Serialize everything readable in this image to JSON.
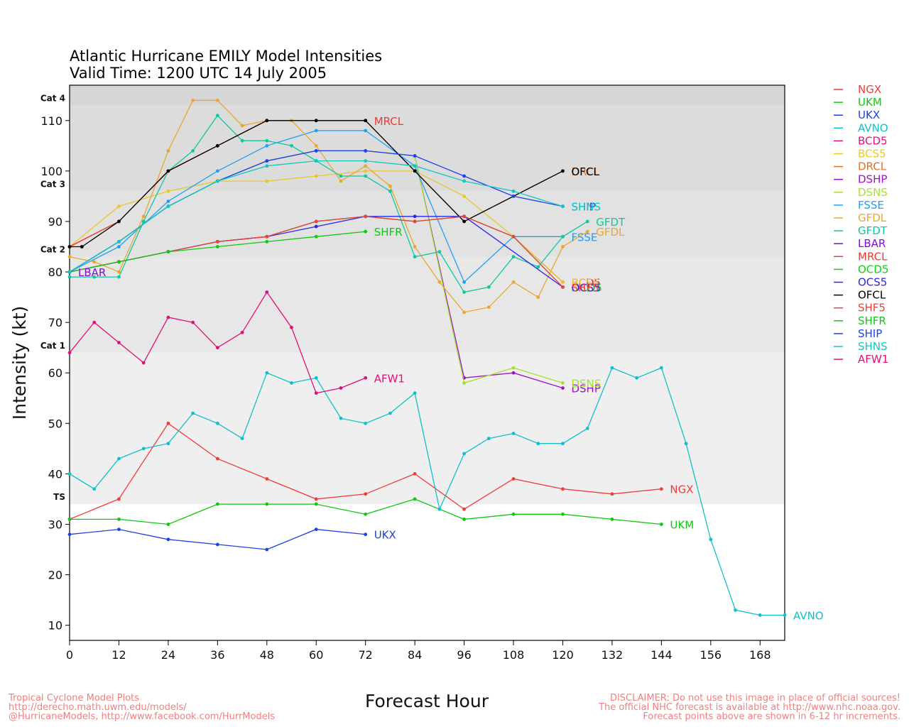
{
  "chart_data": {
    "type": "line",
    "title": "Atlantic Hurricane EMILY Model Intensities",
    "subtitle": "Valid Time: 1200 UTC 14 July 2005",
    "xlabel": "Forecast Hour",
    "ylabel": "Intensity (kt)",
    "xlim": [
      0,
      174
    ],
    "ylim": [
      7,
      117
    ],
    "xticks": [
      0,
      12,
      24,
      36,
      48,
      60,
      72,
      84,
      96,
      108,
      120,
      132,
      144,
      156,
      168
    ],
    "yticks": [
      10,
      20,
      30,
      40,
      50,
      60,
      70,
      80,
      90,
      100,
      110
    ],
    "legend_position": "right",
    "categories_bands": [
      {
        "label": "TS",
        "min": 34,
        "max": 64,
        "color": "#efefef"
      },
      {
        "label": "Cat 1",
        "min": 64,
        "max": 83,
        "color": "#e7e7e7"
      },
      {
        "label": "Cat 2",
        "min": 83,
        "max": 96,
        "color": "#e2e2e2"
      },
      {
        "label": "Cat 3",
        "min": 96,
        "max": 113,
        "color": "#dcdcdc"
      },
      {
        "label": "Cat 4",
        "min": 113,
        "max": 117,
        "color": "#d6d6d6"
      }
    ],
    "series": [
      {
        "name": "NGX",
        "color": "#f03c3c",
        "label_at": "end",
        "points": [
          [
            0,
            31
          ],
          [
            12,
            35
          ],
          [
            24,
            50
          ],
          [
            36,
            43
          ],
          [
            48,
            39
          ],
          [
            60,
            35
          ],
          [
            72,
            36
          ],
          [
            84,
            40
          ],
          [
            96,
            33
          ],
          [
            108,
            39
          ],
          [
            120,
            37
          ],
          [
            132,
            36
          ],
          [
            144,
            37
          ]
        ]
      },
      {
        "name": "UKM",
        "color": "#10c810",
        "label_at": "end",
        "points": [
          [
            0,
            31
          ],
          [
            12,
            31
          ],
          [
            24,
            30
          ],
          [
            36,
            34
          ],
          [
            48,
            34
          ],
          [
            60,
            34
          ],
          [
            72,
            32
          ],
          [
            84,
            35
          ],
          [
            96,
            31
          ],
          [
            108,
            32
          ],
          [
            120,
            32
          ],
          [
            132,
            31
          ],
          [
            144,
            30
          ]
        ]
      },
      {
        "name": "UKX",
        "color": "#2040e0",
        "label_at": "end",
        "points": [
          [
            0,
            28
          ],
          [
            12,
            29
          ],
          [
            24,
            27
          ],
          [
            36,
            26
          ],
          [
            48,
            25
          ],
          [
            60,
            29
          ],
          [
            72,
            28
          ]
        ]
      },
      {
        "name": "AVNO",
        "color": "#10c0c8",
        "label_at": "end",
        "points": [
          [
            0,
            40
          ],
          [
            6,
            37
          ],
          [
            12,
            43
          ],
          [
            18,
            45
          ],
          [
            24,
            46
          ],
          [
            30,
            52
          ],
          [
            36,
            50
          ],
          [
            42,
            47
          ],
          [
            48,
            60
          ],
          [
            54,
            58
          ],
          [
            60,
            59
          ],
          [
            66,
            51
          ],
          [
            72,
            50
          ],
          [
            78,
            52
          ],
          [
            84,
            56
          ],
          [
            90,
            33
          ],
          [
            96,
            44
          ],
          [
            102,
            47
          ],
          [
            108,
            48
          ],
          [
            114,
            46
          ],
          [
            120,
            46
          ],
          [
            126,
            49
          ],
          [
            132,
            61
          ],
          [
            138,
            59
          ],
          [
            144,
            61
          ],
          [
            150,
            46
          ],
          [
            156,
            27
          ],
          [
            162,
            13
          ],
          [
            168,
            12
          ],
          [
            174,
            12
          ]
        ]
      },
      {
        "name": "BCD5",
        "color": "#e01080",
        "label_at": "end",
        "points": [
          [
            0,
            80
          ],
          [
            12,
            82
          ],
          [
            24,
            84
          ],
          [
            36,
            86
          ],
          [
            48,
            87
          ],
          [
            60,
            90
          ],
          [
            72,
            91
          ],
          [
            84,
            90
          ],
          [
            96,
            91
          ],
          [
            108,
            87
          ],
          [
            120,
            78
          ]
        ]
      },
      {
        "name": "BCS5",
        "color": "#e8c828",
        "label_at": "end",
        "points": [
          [
            0,
            85
          ],
          [
            12,
            93
          ],
          [
            24,
            96
          ],
          [
            36,
            98
          ],
          [
            48,
            98
          ],
          [
            60,
            99
          ],
          [
            72,
            100
          ],
          [
            84,
            100
          ],
          [
            96,
            95
          ],
          [
            108,
            87
          ],
          [
            120,
            78
          ]
        ]
      },
      {
        "name": "DRCL",
        "color": "#e07020",
        "label_at": "end",
        "points": [
          [
            0,
            85
          ],
          [
            12,
            90
          ],
          [
            24,
            100
          ],
          [
            36,
            105
          ],
          [
            48,
            110
          ],
          [
            60,
            110
          ],
          [
            72,
            110
          ],
          [
            84,
            100
          ],
          [
            96,
            90
          ],
          [
            108,
            95
          ],
          [
            120,
            100
          ]
        ]
      },
      {
        "name": "DSHP",
        "color": "#a010d0",
        "label_at": "end",
        "points": [
          [
            0,
            80
          ],
          [
            12,
            86
          ],
          [
            24,
            93
          ],
          [
            36,
            98
          ],
          [
            48,
            102
          ],
          [
            60,
            104
          ],
          [
            72,
            104
          ],
          [
            84,
            103
          ],
          [
            96,
            59
          ],
          [
            108,
            60
          ],
          [
            120,
            57
          ]
        ]
      },
      {
        "name": "DSNS",
        "color": "#a8e030",
        "label_at": "end",
        "points": [
          [
            0,
            80
          ],
          [
            12,
            86
          ],
          [
            24,
            93
          ],
          [
            36,
            98
          ],
          [
            48,
            102
          ],
          [
            60,
            104
          ],
          [
            72,
            104
          ],
          [
            84,
            103
          ],
          [
            96,
            58
          ],
          [
            108,
            61
          ],
          [
            120,
            58
          ]
        ]
      },
      {
        "name": "FSSE",
        "color": "#20a0f0",
        "label_at": "end",
        "points": [
          [
            0,
            80
          ],
          [
            12,
            85
          ],
          [
            24,
            94
          ],
          [
            36,
            100
          ],
          [
            48,
            105
          ],
          [
            60,
            108
          ],
          [
            72,
            108
          ],
          [
            84,
            101
          ],
          [
            96,
            78
          ],
          [
            108,
            87
          ],
          [
            120,
            87
          ]
        ]
      },
      {
        "name": "GFDL",
        "color": "#e8a830",
        "label_at": "end",
        "points": [
          [
            0,
            83
          ],
          [
            6,
            82
          ],
          [
            12,
            80
          ],
          [
            18,
            91
          ],
          [
            24,
            104
          ],
          [
            30,
            114
          ],
          [
            36,
            114
          ],
          [
            42,
            109
          ],
          [
            48,
            110
          ],
          [
            54,
            110
          ],
          [
            60,
            105
          ],
          [
            66,
            98
          ],
          [
            72,
            101
          ],
          [
            78,
            97
          ],
          [
            84,
            85
          ],
          [
            90,
            78
          ],
          [
            96,
            72
          ],
          [
            102,
            73
          ],
          [
            108,
            78
          ],
          [
            114,
            75
          ],
          [
            120,
            85
          ],
          [
            126,
            88
          ]
        ]
      },
      {
        "name": "GFDT",
        "color": "#10c8a0",
        "label_at": "end",
        "points": [
          [
            0,
            79
          ],
          [
            6,
            79
          ],
          [
            12,
            79
          ],
          [
            18,
            90
          ],
          [
            24,
            100
          ],
          [
            30,
            104
          ],
          [
            36,
            111
          ],
          [
            42,
            106
          ],
          [
            48,
            106
          ],
          [
            54,
            105
          ],
          [
            60,
            102
          ],
          [
            66,
            99
          ],
          [
            72,
            99
          ],
          [
            78,
            96
          ],
          [
            84,
            83
          ],
          [
            90,
            84
          ],
          [
            96,
            76
          ],
          [
            102,
            77
          ],
          [
            108,
            83
          ],
          [
            114,
            81
          ],
          [
            120,
            87
          ],
          [
            126,
            90
          ]
        ]
      },
      {
        "name": "LBAR",
        "color": "#8010d0",
        "label_at": "start",
        "points": [
          [
            0,
            80
          ]
        ]
      },
      {
        "name": "MRCL",
        "color": "#f03838",
        "label_at": "end",
        "points": [
          [
            0,
            85
          ],
          [
            12,
            90
          ],
          [
            24,
            100
          ],
          [
            36,
            105
          ],
          [
            48,
            110
          ],
          [
            60,
            110
          ],
          [
            72,
            110
          ]
        ]
      },
      {
        "name": "OCD5",
        "color": "#10d010",
        "label_at": "end",
        "points": [
          [
            0,
            80
          ],
          [
            12,
            82
          ],
          [
            24,
            84
          ],
          [
            36,
            86
          ],
          [
            48,
            87
          ],
          [
            60,
            90
          ],
          [
            72,
            91
          ],
          [
            84,
            90
          ],
          [
            96,
            91
          ],
          [
            108,
            87
          ],
          [
            120,
            77
          ]
        ]
      },
      {
        "name": "OCS5",
        "color": "#2828e8",
        "label_at": "end",
        "points": [
          [
            0,
            80
          ],
          [
            12,
            82
          ],
          [
            24,
            84
          ],
          [
            36,
            86
          ],
          [
            48,
            87
          ],
          [
            60,
            89
          ],
          [
            72,
            91
          ],
          [
            84,
            91
          ],
          [
            96,
            91
          ],
          [
            120,
            77
          ]
        ]
      },
      {
        "name": "OFCL",
        "color": "#000000",
        "label_at": "end",
        "points": [
          [
            0,
            85
          ],
          [
            3,
            85
          ],
          [
            12,
            90
          ],
          [
            24,
            100
          ],
          [
            36,
            105
          ],
          [
            48,
            110
          ],
          [
            60,
            110
          ],
          [
            72,
            110
          ],
          [
            84,
            100
          ],
          [
            96,
            90
          ],
          [
            120,
            100
          ]
        ]
      },
      {
        "name": "SHF5",
        "color": "#f04040",
        "label_at": "end",
        "points": [
          [
            0,
            80
          ],
          [
            12,
            82
          ],
          [
            24,
            84
          ],
          [
            36,
            86
          ],
          [
            48,
            87
          ],
          [
            60,
            90
          ],
          [
            72,
            91
          ],
          [
            84,
            90
          ],
          [
            96,
            91
          ],
          [
            108,
            87
          ],
          [
            120,
            77
          ]
        ]
      },
      {
        "name": "SHFR",
        "color": "#10c810",
        "label_at": "end",
        "points": [
          [
            0,
            80
          ],
          [
            12,
            82
          ],
          [
            24,
            84
          ],
          [
            36,
            85
          ],
          [
            48,
            86
          ],
          [
            60,
            87
          ],
          [
            72,
            88
          ]
        ]
      },
      {
        "name": "SHIP",
        "color": "#2040f0",
        "label_at": "end",
        "points": [
          [
            0,
            80
          ],
          [
            12,
            86
          ],
          [
            24,
            93
          ],
          [
            36,
            98
          ],
          [
            48,
            102
          ],
          [
            60,
            104
          ],
          [
            72,
            104
          ],
          [
            84,
            103
          ],
          [
            96,
            99
          ],
          [
            108,
            95
          ],
          [
            120,
            93
          ]
        ]
      },
      {
        "name": "SHNS",
        "color": "#10c8c0",
        "label_at": "end",
        "points": [
          [
            0,
            80
          ],
          [
            12,
            86
          ],
          [
            24,
            93
          ],
          [
            36,
            98
          ],
          [
            48,
            101
          ],
          [
            60,
            102
          ],
          [
            72,
            102
          ],
          [
            84,
            101
          ],
          [
            96,
            98
          ],
          [
            108,
            96
          ],
          [
            120,
            93
          ]
        ]
      },
      {
        "name": "AFW1",
        "color": "#e01078",
        "label_at": "end",
        "points": [
          [
            0,
            64
          ],
          [
            6,
            70
          ],
          [
            12,
            66
          ],
          [
            18,
            62
          ],
          [
            24,
            71
          ],
          [
            30,
            70
          ],
          [
            36,
            65
          ],
          [
            42,
            68
          ],
          [
            48,
            76
          ],
          [
            54,
            69
          ],
          [
            60,
            56
          ],
          [
            66,
            57
          ],
          [
            72,
            59
          ]
        ]
      }
    ]
  },
  "footer": {
    "left_line1": "Tropical Cyclone Model Plots",
    "left_line2": "http://derecho.math.uwm.edu/models/",
    "left_line3": "@HurricaneModels, http://www.facebook.com/HurrModels",
    "right_line1": "DISCLAIMER: Do not use this image in place of official sources!",
    "right_line2": "The official NHC forecast is available at http://www.nhc.noaa.gov.",
    "right_line3": "Forecast points above are shown in 6-12 hr increments."
  }
}
